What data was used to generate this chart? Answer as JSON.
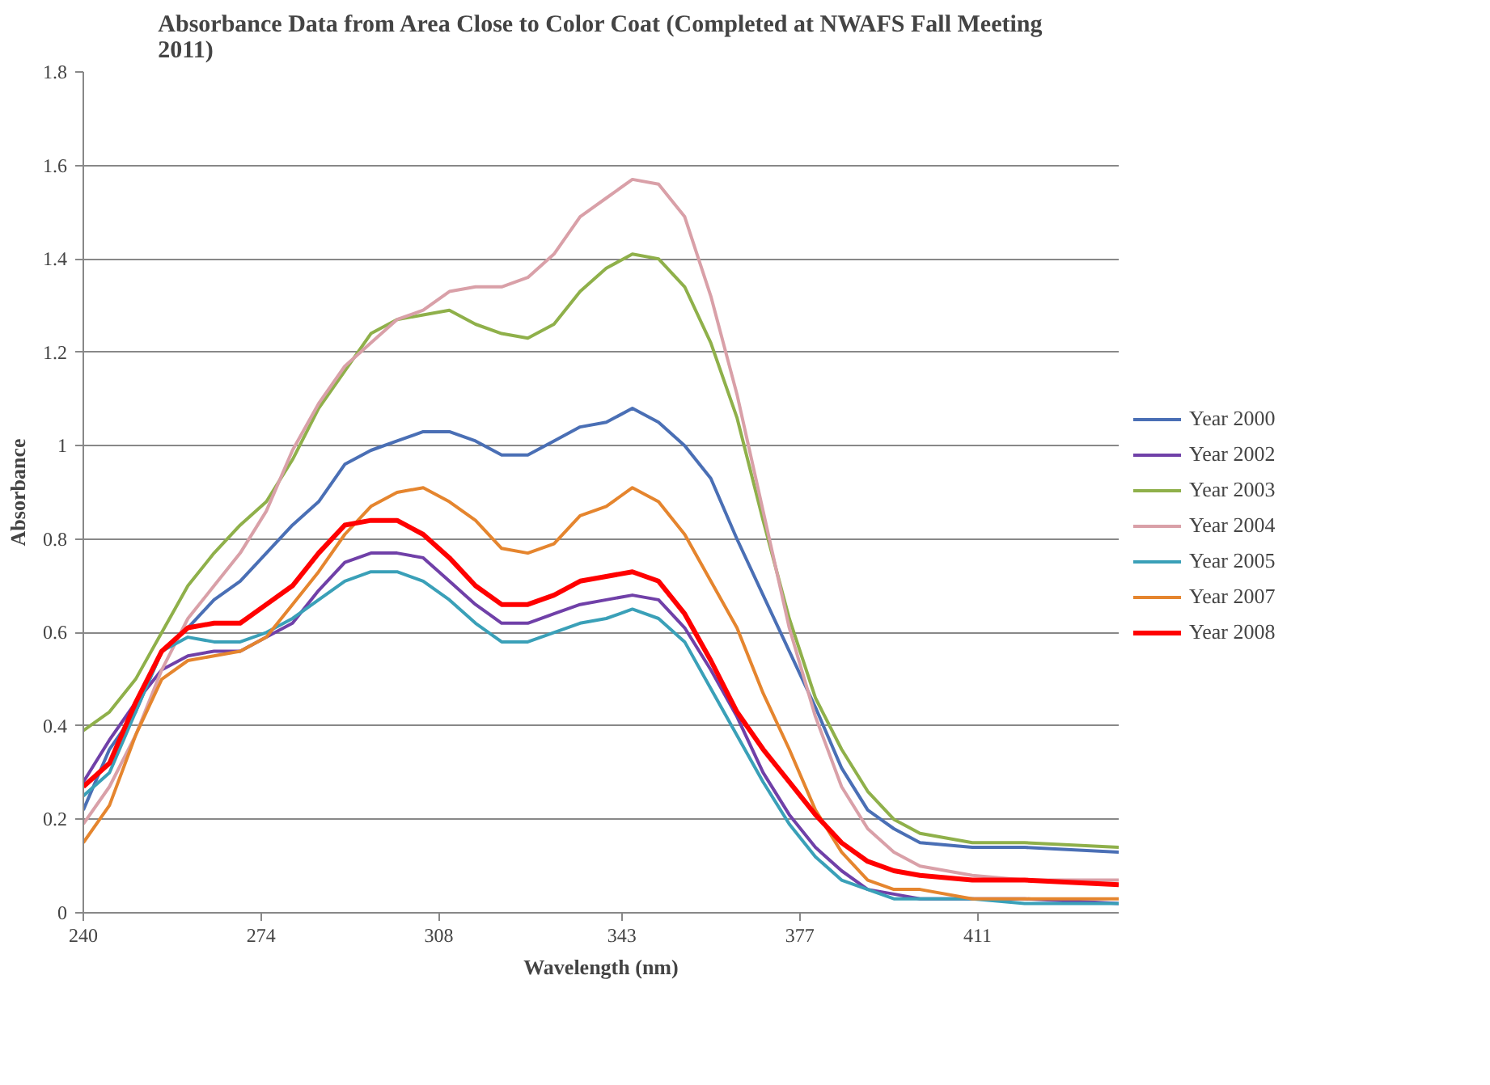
{
  "chart_data": {
    "type": "line",
    "title": "Absorbance Data from Area Close to Color Coat (Completed at NWAFS Fall Meeting\n2011)",
    "xlabel": "Wavelength (nm)",
    "ylabel": "Absorbance",
    "x": [
      240,
      245,
      250,
      255,
      260,
      265,
      270,
      275,
      280,
      285,
      290,
      295,
      300,
      305,
      310,
      315,
      320,
      325,
      330,
      335,
      340,
      345,
      350,
      355,
      360,
      365,
      370,
      375,
      380,
      385,
      390,
      395,
      400,
      410,
      420,
      438
    ],
    "xlim": [
      240,
      438
    ],
    "xticks": [
      240,
      274,
      308,
      343,
      377,
      411
    ],
    "ylim": [
      0,
      1.8
    ],
    "yticks": [
      0,
      0.2,
      0.4,
      0.6,
      0.8,
      1,
      1.2,
      1.4,
      1.6,
      1.8
    ],
    "grid": "y",
    "legend": "right",
    "line_style": "solid",
    "series": [
      {
        "name": "Year 2000",
        "color": "#4a6fb5",
        "values": [
          0.22,
          0.35,
          0.43,
          0.56,
          0.61,
          0.67,
          0.71,
          0.77,
          0.83,
          0.88,
          0.96,
          0.99,
          1.01,
          1.03,
          1.03,
          1.01,
          0.98,
          0.98,
          1.01,
          1.04,
          1.05,
          1.08,
          1.05,
          1.0,
          0.93,
          0.8,
          0.68,
          0.56,
          0.44,
          0.31,
          0.22,
          0.18,
          0.15,
          0.14,
          0.14,
          0.13
        ]
      },
      {
        "name": "Year 2002",
        "color": "#7040a8",
        "values": [
          0.28,
          0.37,
          0.45,
          0.52,
          0.55,
          0.56,
          0.56,
          0.59,
          0.62,
          0.69,
          0.75,
          0.77,
          0.77,
          0.76,
          0.71,
          0.66,
          0.62,
          0.62,
          0.64,
          0.66,
          0.67,
          0.68,
          0.67,
          0.61,
          0.52,
          0.42,
          0.3,
          0.21,
          0.14,
          0.09,
          0.05,
          0.04,
          0.03,
          0.03,
          0.03,
          0.02
        ]
      },
      {
        "name": "Year 2003",
        "color": "#8fb04a",
        "values": [
          0.39,
          0.43,
          0.5,
          0.6,
          0.7,
          0.77,
          0.83,
          0.88,
          0.97,
          1.08,
          1.16,
          1.24,
          1.27,
          1.28,
          1.29,
          1.26,
          1.24,
          1.23,
          1.26,
          1.33,
          1.38,
          1.41,
          1.4,
          1.34,
          1.22,
          1.06,
          0.84,
          0.63,
          0.46,
          0.35,
          0.26,
          0.2,
          0.17,
          0.15,
          0.15,
          0.14
        ]
      },
      {
        "name": "Year 2004",
        "color": "#d9a0a8",
        "values": [
          0.19,
          0.27,
          0.38,
          0.52,
          0.63,
          0.7,
          0.77,
          0.86,
          0.99,
          1.09,
          1.17,
          1.22,
          1.27,
          1.29,
          1.33,
          1.34,
          1.34,
          1.36,
          1.41,
          1.49,
          1.53,
          1.57,
          1.56,
          1.49,
          1.32,
          1.11,
          0.86,
          0.61,
          0.42,
          0.27,
          0.18,
          0.13,
          0.1,
          0.08,
          0.07,
          0.07
        ]
      },
      {
        "name": "Year 2005",
        "color": "#3aa0b8",
        "values": [
          0.25,
          0.3,
          0.43,
          0.56,
          0.59,
          0.58,
          0.58,
          0.6,
          0.63,
          0.67,
          0.71,
          0.73,
          0.73,
          0.71,
          0.67,
          0.62,
          0.58,
          0.58,
          0.6,
          0.62,
          0.63,
          0.65,
          0.63,
          0.58,
          0.48,
          0.38,
          0.28,
          0.19,
          0.12,
          0.07,
          0.05,
          0.03,
          0.03,
          0.03,
          0.02,
          0.02
        ]
      },
      {
        "name": "Year 2007",
        "color": "#e5852e",
        "values": [
          0.15,
          0.23,
          0.38,
          0.5,
          0.54,
          0.55,
          0.56,
          0.59,
          0.66,
          0.73,
          0.81,
          0.87,
          0.9,
          0.91,
          0.88,
          0.84,
          0.78,
          0.77,
          0.79,
          0.85,
          0.87,
          0.91,
          0.88,
          0.81,
          0.71,
          0.61,
          0.47,
          0.35,
          0.22,
          0.13,
          0.07,
          0.05,
          0.05,
          0.03,
          0.03,
          0.03
        ]
      },
      {
        "name": "Year 2008",
        "color": "#ff0000",
        "values": [
          0.27,
          0.32,
          0.45,
          0.56,
          0.61,
          0.62,
          0.62,
          0.66,
          0.7,
          0.77,
          0.83,
          0.84,
          0.84,
          0.81,
          0.76,
          0.7,
          0.66,
          0.66,
          0.68,
          0.71,
          0.72,
          0.73,
          0.71,
          0.64,
          0.54,
          0.43,
          0.35,
          0.28,
          0.21,
          0.15,
          0.11,
          0.09,
          0.08,
          0.07,
          0.07,
          0.06
        ]
      }
    ]
  }
}
